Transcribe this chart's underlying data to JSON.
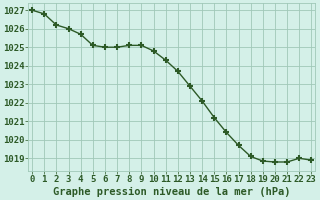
{
  "x": [
    0,
    1,
    2,
    3,
    4,
    5,
    6,
    7,
    8,
    9,
    10,
    11,
    12,
    13,
    14,
    15,
    16,
    17,
    18,
    19,
    20,
    21,
    22,
    23
  ],
  "y": [
    1027.0,
    1026.8,
    1026.2,
    1026.0,
    1025.7,
    1025.1,
    1025.0,
    1025.0,
    1025.1,
    1025.1,
    1024.8,
    1024.3,
    1023.7,
    1022.9,
    1022.1,
    1021.2,
    1020.4,
    1019.7,
    1019.1,
    1018.85,
    1018.8,
    1018.8,
    1019.0,
    1018.9
  ],
  "line_color": "#2d5a27",
  "marker": "+",
  "marker_size": 5,
  "marker_linewidth": 1.5,
  "bg_color": "#d4f0e8",
  "grid_major_color": "#a0c8b8",
  "grid_minor_color": "#b8ddd0",
  "xlabel": "Graphe pression niveau de la mer (hPa)",
  "xlabel_color": "#2d5a27",
  "tick_color": "#2d5a27",
  "ylabel_ticks": [
    1019,
    1020,
    1021,
    1022,
    1023,
    1024,
    1025,
    1026,
    1027
  ],
  "ylim": [
    1018.3,
    1027.4
  ],
  "xlim": [
    -0.3,
    23.3
  ],
  "linewidth": 1.0,
  "xlabel_fontsize": 7.5,
  "tick_fontsize": 6.5
}
